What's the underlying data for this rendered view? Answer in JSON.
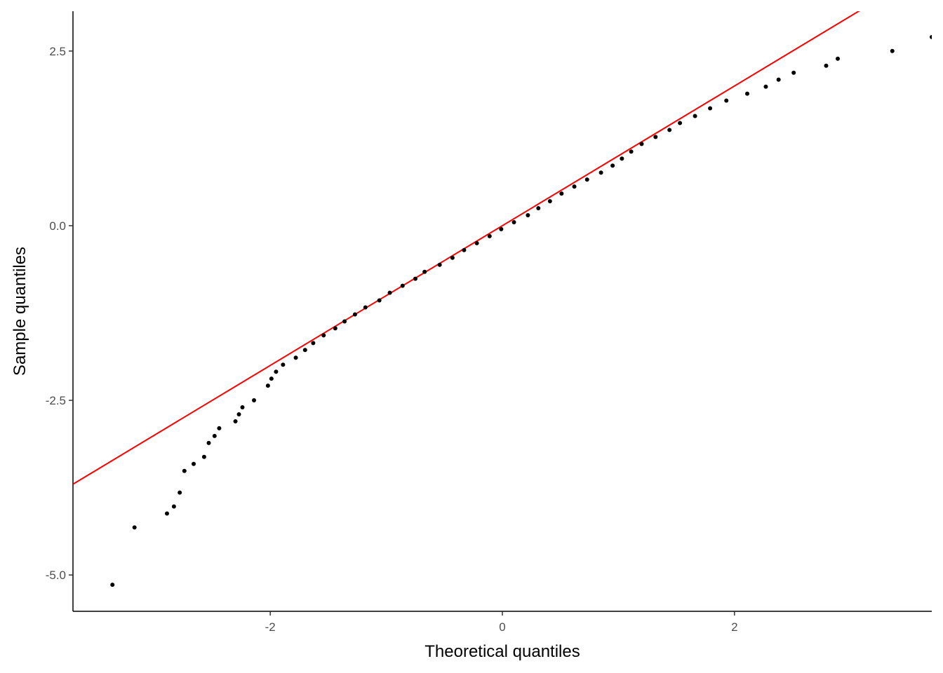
{
  "chart_data": {
    "type": "scatter",
    "x_label": "Theoretical quantiles",
    "y_label": "Sample quantiles",
    "x": [
      -3.36,
      -3.17,
      -2.89,
      -2.83,
      -2.78,
      -2.74,
      -2.66,
      -2.57,
      -2.53,
      -2.48,
      -2.44,
      -2.3,
      -2.27,
      -2.24,
      -2.14,
      -2.02,
      -1.99,
      -1.95,
      -1.89,
      -1.78,
      -1.7,
      -1.63,
      -1.54,
      -1.44,
      -1.36,
      -1.27,
      -1.18,
      -1.06,
      -0.97,
      -0.86,
      -0.75,
      -0.67,
      -0.54,
      -0.43,
      -0.33,
      -0.22,
      -0.11,
      -0.01,
      0.1,
      0.22,
      0.31,
      0.41,
      0.51,
      0.62,
      0.73,
      0.85,
      0.95,
      1.03,
      1.11,
      1.2,
      1.32,
      1.44,
      1.53,
      1.66,
      1.79,
      1.93,
      2.11,
      2.27,
      2.38,
      2.51,
      2.79,
      2.89,
      3.36,
      3.7
    ],
    "values": [
      -5.14,
      -4.32,
      -4.12,
      -4.02,
      -3.82,
      -3.51,
      -3.41,
      -3.31,
      -3.11,
      -3.01,
      -2.9,
      -2.8,
      -2.7,
      -2.6,
      -2.5,
      -2.29,
      -2.19,
      -2.09,
      -1.99,
      -1.89,
      -1.78,
      -1.68,
      -1.57,
      -1.47,
      -1.37,
      -1.27,
      -1.17,
      -1.07,
      -0.96,
      -0.86,
      -0.76,
      -0.66,
      -0.56,
      -0.46,
      -0.35,
      -0.25,
      -0.15,
      -0.05,
      0.05,
      0.15,
      0.25,
      0.35,
      0.46,
      0.56,
      0.66,
      0.76,
      0.86,
      0.96,
      1.06,
      1.17,
      1.27,
      1.37,
      1.47,
      1.57,
      1.68,
      1.79,
      1.89,
      1.99,
      2.09,
      2.19,
      2.29,
      2.39,
      2.5,
      2.7
    ],
    "color": "#000000",
    "reference_line": {
      "slope": 1,
      "intercept": 0,
      "color": "#ff0000"
    },
    "xlim": [
      -3.7,
      3.7
    ],
    "ylim": [
      -5.52,
      3.07
    ],
    "xticks": [
      -2,
      0,
      2
    ],
    "yticks": [
      {
        "value": -5,
        "label": "-5.0"
      },
      -2.5,
      {
        "value": 0,
        "label": "0.0"
      },
      2.5
    ],
    "grid": false
  }
}
